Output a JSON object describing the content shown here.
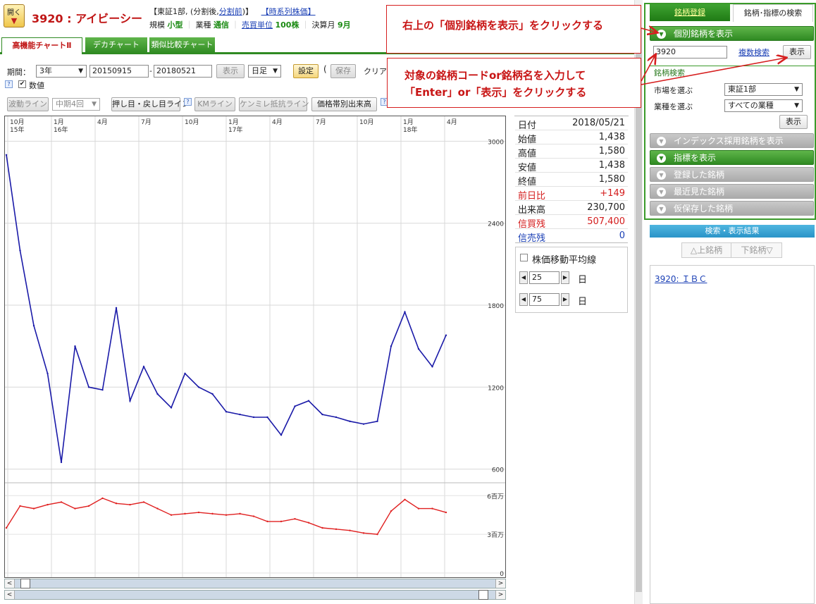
{
  "header": {
    "open_button": "開く",
    "stock_title": "3920 : アイビーシー",
    "market_info": "【東証1部, (分割後,",
    "split_link": "分割前",
    "market_info_end": ")】",
    "timeseries_link": "【時系列株価】",
    "scale_label": "規模",
    "scale_value": "小型",
    "industry_label": "業種",
    "industry_value": "通信",
    "unit_link": "売買単位",
    "unit_value": "100株",
    "fiscal_label": "決算月",
    "fiscal_value": "9月"
  },
  "chart_tabs": [
    "高機能チャートⅡ",
    "デカチャート",
    "類似比較チャート"
  ],
  "controls": {
    "period_label": "期間：",
    "period_value": "3年",
    "date_from": "20150915",
    "date_sep": "-",
    "date_to": "20180521",
    "show_button": "表示",
    "interval_value": "日足",
    "settings_button": "設定",
    "paren_open": "(",
    "save_button": "保存",
    "clear_button": "クリア",
    "numeric_label": "数値",
    "help_q": "?"
  },
  "tool_buttons": {
    "wave": "波動ライン",
    "term": "中期4回",
    "pushback": "押し目・戻し目ライン",
    "km": "KMライン",
    "kenmire": "ケンミレ抵抗ライン",
    "volume_profile": "価格帯別出来高"
  },
  "x_axis": [
    {
      "m": "10月",
      "y": "15年"
    },
    {
      "m": "1月",
      "y": "16年"
    },
    {
      "m": "4月",
      "y": ""
    },
    {
      "m": "7月",
      "y": ""
    },
    {
      "m": "10月",
      "y": ""
    },
    {
      "m": "1月",
      "y": "17年"
    },
    {
      "m": "4月",
      "y": ""
    },
    {
      "m": "7月",
      "y": ""
    },
    {
      "m": "10月",
      "y": ""
    },
    {
      "m": "1月",
      "y": "18年"
    },
    {
      "m": "4月",
      "y": ""
    }
  ],
  "y_axis_price": [
    "3000",
    "2400",
    "1800",
    "1200",
    "600"
  ],
  "y_axis_volume": [
    "6百万",
    "3百万",
    "0"
  ],
  "info": {
    "date_label": "日付",
    "date_value": "2018/05/21",
    "open_label": "始値",
    "open_value": "1,438",
    "high_label": "高値",
    "high_value": "1,580",
    "low_label": "安値",
    "low_value": "1,438",
    "close_label": "終値",
    "close_value": "1,580",
    "change_label": "前日比",
    "change_value": "+149",
    "volume_label": "出来高",
    "volume_value": "230,700",
    "margin_buy_label": "信買残",
    "margin_buy_value": "507,400",
    "margin_sell_label": "信売残",
    "margin_sell_value": "0"
  },
  "ma": {
    "title": "株価移動平均線",
    "val1": "25",
    "val2": "75",
    "day": "日"
  },
  "right_panel": {
    "tab_register": "銘柄登録",
    "tab_search": "銘柄･指標の検索",
    "bar_individual": "個別銘柄を表示",
    "code_input": "3920",
    "multi_search": "複数検索",
    "show_button": "表示",
    "search_section": "銘柄検索",
    "market_label": "市場を選ぶ",
    "market_value": "東証1部",
    "industry_label": "業種を選ぶ",
    "industry_value": "すべての業種",
    "show_button2": "表示",
    "bar_index": "インデックス採用銘柄を表示",
    "bar_indicator": "指標を表示",
    "bar_registered": "登録した銘柄",
    "bar_recent": "最近見た銘柄",
    "bar_temp": "仮保存した銘柄",
    "results_header": "検索・表示結果",
    "prev_stock": "上銘柄",
    "next_stock": "下銘柄",
    "result_code": "3920",
    "result_sep": ":",
    "result_name": "ＩＢＣ"
  },
  "annotations": {
    "callout1": "右上の「個別銘柄を表示」をクリックする",
    "callout2_line1": "対象の銘柄コードor銘柄名を入力して",
    "callout2_line2": "「Enter」or「表示」をクリックする"
  },
  "chart_data": {
    "type": "line",
    "x": [
      "2015-09",
      "2015-10",
      "2015-11",
      "2015-12",
      "2016-01",
      "2016-02",
      "2016-03",
      "2016-04",
      "2016-05",
      "2016-06",
      "2016-07",
      "2016-08",
      "2016-09",
      "2016-10",
      "2016-11",
      "2016-12",
      "2017-01",
      "2017-02",
      "2017-03",
      "2017-04",
      "2017-05",
      "2017-06",
      "2017-07",
      "2017-08",
      "2017-09",
      "2017-10",
      "2017-11",
      "2017-12",
      "2018-01",
      "2018-02",
      "2018-03",
      "2018-04",
      "2018-05"
    ],
    "series": [
      {
        "values": [
          2900,
          2200,
          1650,
          1300,
          650,
          1500,
          1200,
          1180,
          1780,
          1100,
          1350,
          1150,
          1050,
          1300,
          1200,
          1150,
          1020,
          1000,
          980,
          980,
          850,
          1060,
          1100,
          1000,
          980,
          950,
          930,
          950,
          1500,
          1750,
          1480,
          1350,
          1580
        ],
        "color": "#1a1aa8"
      },
      {
        "values": [
          3.5,
          5.2,
          5.0,
          5.3,
          5.5,
          5.0,
          5.2,
          5.8,
          5.4,
          5.3,
          5.5,
          5.0,
          4.5,
          4.6,
          4.7,
          4.6,
          4.5,
          4.6,
          4.4,
          4.0,
          4.0,
          4.2,
          3.9,
          3.5,
          3.4,
          3.3,
          3.1,
          3.0,
          4.8,
          5.7,
          5.0,
          5.0,
          4.7
        ],
        "color": "#e02020"
      }
    ],
    "ylim": [
      500,
      3100
    ],
    "volume_ylim": [
      0,
      7
    ],
    "volume_unit": "百万",
    "grid": true
  }
}
